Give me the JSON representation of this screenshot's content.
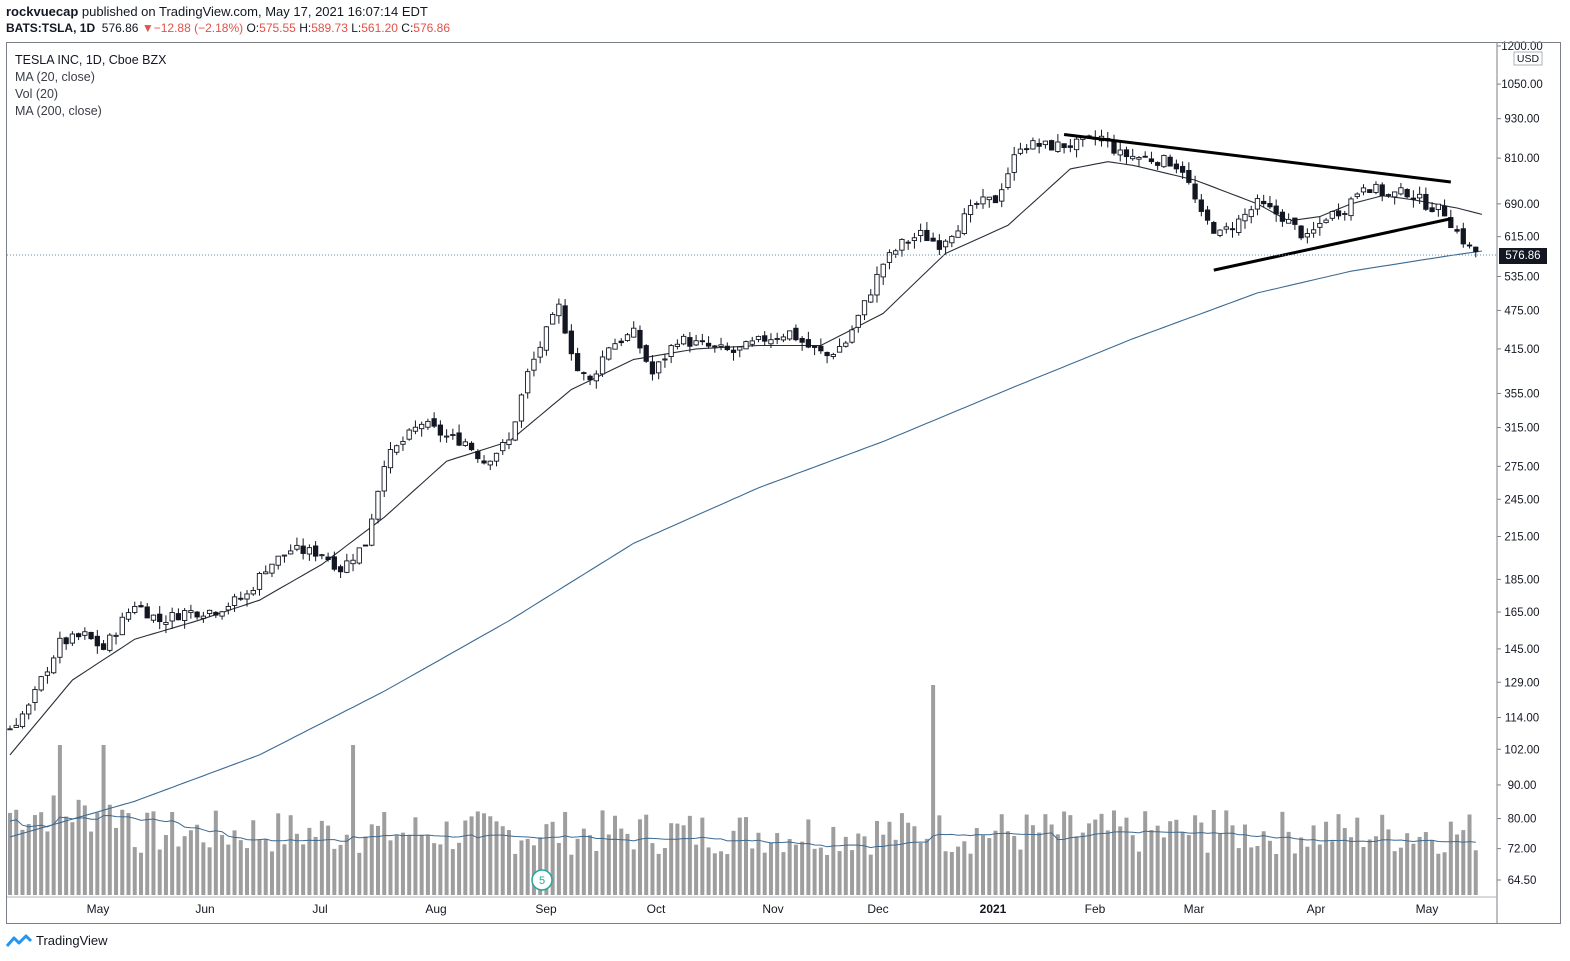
{
  "header": {
    "author": "rockvuecap",
    "published_text": "published on TradingView.com, May 17, 2021 16:07:14 EDT",
    "symbol_line": "BATS:TSLA, 1D",
    "last": "576.86",
    "change_arrow": "▼",
    "change": "−12.88 (−2.18%)",
    "o_label": "O:",
    "o_val": "575.55",
    "h_label": "H:",
    "h_val": "589.73",
    "l_label": "L:",
    "l_val": "561.20",
    "c_label": "C:",
    "c_val": "576.86"
  },
  "legend": {
    "title": "TESLA INC, 1D, Cboe BZX",
    "ma20": "MA (20, close)",
    "vol": "Vol (20)",
    "ma200": "MA (200, close)"
  },
  "footer": {
    "brand": "TradingView"
  },
  "colors": {
    "candle": "#131722",
    "ma20": "#2a2e39",
    "ma200": "#3d6a93",
    "volume": "#9e9e9e",
    "volma": "#3d6a93",
    "grid_dot": "#5b8fa8",
    "trendline": "#000000"
  },
  "chart_data": {
    "type": "candlestick",
    "symbol": "TSLA",
    "interval": "1D",
    "y_scale": "log",
    "currency": "USD",
    "y_ticks": [
      "1200.00",
      "1050.00",
      "930.00",
      "810.00",
      "690.00",
      "615.00",
      "576.86",
      "535.00",
      "475.00",
      "415.00",
      "355.00",
      "315.00",
      "275.00",
      "245.00",
      "215.00",
      "185.00",
      "165.00",
      "145.00",
      "129.00",
      "114.00",
      "102.00",
      "90.00",
      "80.00",
      "72.00",
      "64.50"
    ],
    "y_tick_values": [
      1200,
      1050,
      930,
      810,
      690,
      615,
      535,
      475,
      415,
      355,
      315,
      275,
      245,
      215,
      185,
      165,
      145,
      129,
      114,
      102,
      90,
      80,
      72,
      64.5
    ],
    "x_ticks": [
      "May",
      "Jun",
      "Jul",
      "Aug",
      "Sep",
      "Oct",
      "Nov",
      "Dec",
      "2021",
      "Feb",
      "Mar",
      "Apr",
      "May"
    ],
    "event_marker": "5",
    "last_price": 576.86,
    "close_path": [
      [
        0,
        110
      ],
      [
        3,
        118
      ],
      [
        5,
        130
      ],
      [
        8,
        148
      ],
      [
        12,
        152
      ],
      [
        15,
        145
      ],
      [
        18,
        160
      ],
      [
        20,
        170
      ],
      [
        24,
        160
      ],
      [
        28,
        165
      ],
      [
        33,
        166
      ],
      [
        38,
        175
      ],
      [
        41,
        193
      ],
      [
        45,
        205
      ],
      [
        50,
        203
      ],
      [
        53,
        192
      ],
      [
        57,
        210
      ],
      [
        60,
        280
      ],
      [
        63,
        300
      ],
      [
        66,
        320
      ],
      [
        70,
        305
      ],
      [
        73,
        300
      ],
      [
        76,
        280
      ],
      [
        80,
        300
      ],
      [
        83,
        380
      ],
      [
        86,
        440
      ],
      [
        88,
        480
      ],
      [
        91,
        385
      ],
      [
        93,
        370
      ],
      [
        96,
        420
      ],
      [
        100,
        438
      ],
      [
        103,
        380
      ],
      [
        107,
        430
      ],
      [
        111,
        420
      ],
      [
        116,
        410
      ],
      [
        121,
        430
      ],
      [
        125,
        440
      ],
      [
        128,
        418
      ],
      [
        131,
        405
      ],
      [
        134,
        425
      ],
      [
        137,
        485
      ],
      [
        140,
        560
      ],
      [
        143,
        600
      ],
      [
        146,
        620
      ],
      [
        149,
        600
      ],
      [
        152,
        640
      ],
      [
        155,
        690
      ],
      [
        158,
        700
      ],
      [
        162,
        850
      ],
      [
        167,
        845
      ],
      [
        171,
        850
      ],
      [
        175,
        870
      ],
      [
        178,
        820
      ],
      [
        182,
        810
      ],
      [
        186,
        800
      ],
      [
        188,
        780
      ],
      [
        191,
        660
      ],
      [
        194,
        620
      ],
      [
        197,
        650
      ],
      [
        200,
        690
      ],
      [
        204,
        660
      ],
      [
        208,
        610
      ],
      [
        211,
        660
      ],
      [
        214,
        680
      ],
      [
        217,
        740
      ],
      [
        221,
        710
      ],
      [
        224,
        720
      ],
      [
        227,
        690
      ],
      [
        230,
        670
      ],
      [
        232,
        625
      ],
      [
        234,
        590
      ],
      [
        236,
        578
      ]
    ],
    "ma20_path": [
      [
        0,
        100
      ],
      [
        10,
        130
      ],
      [
        20,
        150
      ],
      [
        30,
        160
      ],
      [
        40,
        172
      ],
      [
        50,
        195
      ],
      [
        60,
        230
      ],
      [
        70,
        280
      ],
      [
        80,
        300
      ],
      [
        90,
        360
      ],
      [
        100,
        400
      ],
      [
        110,
        415
      ],
      [
        120,
        420
      ],
      [
        130,
        420
      ],
      [
        140,
        470
      ],
      [
        150,
        580
      ],
      [
        160,
        640
      ],
      [
        170,
        780
      ],
      [
        176,
        800
      ],
      [
        180,
        790
      ],
      [
        190,
        750
      ],
      [
        200,
        690
      ],
      [
        205,
        650
      ],
      [
        210,
        660
      ],
      [
        215,
        690
      ],
      [
        220,
        710
      ],
      [
        225,
        700
      ],
      [
        232,
        680
      ],
      [
        236,
        665
      ]
    ],
    "ma200_path": [
      [
        0,
        75
      ],
      [
        20,
        85
      ],
      [
        40,
        100
      ],
      [
        60,
        125
      ],
      [
        80,
        160
      ],
      [
        100,
        210
      ],
      [
        120,
        255
      ],
      [
        140,
        300
      ],
      [
        160,
        360
      ],
      [
        180,
        430
      ],
      [
        200,
        505
      ],
      [
        215,
        545
      ],
      [
        230,
        574
      ],
      [
        236,
        585
      ]
    ],
    "trendlines": [
      {
        "from": [
          169,
          880
        ],
        "to": [
          231,
          745
        ]
      },
      {
        "from": [
          193,
          547
        ],
        "to": [
          231,
          655
        ]
      }
    ],
    "volume_spikes": [
      [
        8,
        "high"
      ],
      [
        15,
        "high"
      ],
      [
        55,
        "high"
      ],
      [
        148,
        "very_high"
      ],
      [
        193,
        "mid"
      ]
    ]
  }
}
